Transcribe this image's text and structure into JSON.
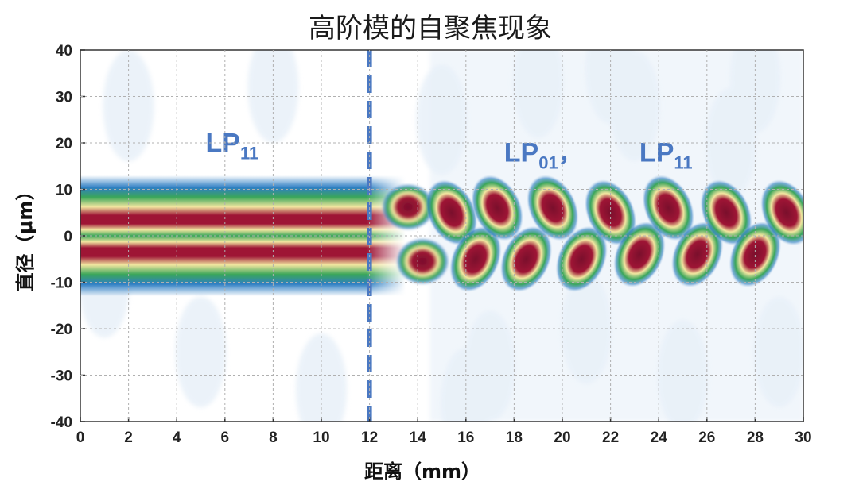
{
  "chart_data": {
    "type": "heatmap",
    "title": "高阶模的自聚焦现象",
    "xlabel": "距离（mm）",
    "ylabel": "直径（μm）",
    "xlim": [
      0,
      30
    ],
    "ylim": [
      -40,
      40
    ],
    "x_ticks": [
      0,
      2,
      4,
      6,
      8,
      10,
      12,
      14,
      16,
      18,
      20,
      22,
      24,
      26,
      28,
      30
    ],
    "y_ticks": [
      40,
      30,
      20,
      10,
      0,
      -10,
      -20,
      -30,
      -40
    ],
    "grid": true,
    "colormap": [
      "#ffffff",
      "#c9dcef",
      "#2f7fc4",
      "#3aa65a",
      "#f2e6a0",
      "#8b1230"
    ],
    "divider": {
      "x": 12,
      "style": "dashed",
      "color": "#4a78c2"
    },
    "annotations": [
      {
        "base": "LP",
        "sub": "11",
        "suffix": "",
        "x": 6.3,
        "y": 18
      },
      {
        "base": "LP",
        "sub": "01",
        "suffix": "，",
        "x": 19.2,
        "y": 16
      },
      {
        "base": "LP",
        "sub": "11",
        "suffix": "",
        "x": 24.3,
        "y": 16
      }
    ],
    "field": {
      "stable_region_x": [
        0,
        13.5
      ],
      "stable_lobes_y": [
        6,
        -6
      ],
      "core_halfwidth_y": 10,
      "focus_spots": [
        {
          "x": 15.4,
          "y": 5
        },
        {
          "x": 16.4,
          "y": -5
        },
        {
          "x": 17.3,
          "y": 6
        },
        {
          "x": 18.5,
          "y": -5
        },
        {
          "x": 19.6,
          "y": 6
        },
        {
          "x": 20.8,
          "y": -5
        },
        {
          "x": 22.0,
          "y": 5
        },
        {
          "x": 23.2,
          "y": -4
        },
        {
          "x": 24.4,
          "y": 6
        },
        {
          "x": 25.6,
          "y": -4
        },
        {
          "x": 26.8,
          "y": 5
        },
        {
          "x": 28.0,
          "y": -4
        },
        {
          "x": 29.3,
          "y": 5
        }
      ]
    }
  }
}
